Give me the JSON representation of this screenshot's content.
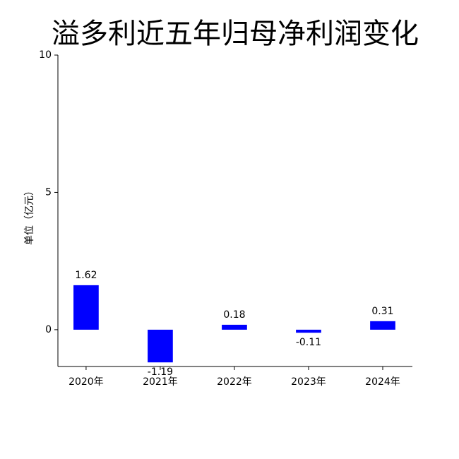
{
  "chart_data": {
    "type": "bar",
    "title": "溢多利近五年归母净利润变化",
    "ylabel": "单位（亿元）",
    "categories": [
      "2020年",
      "2021年",
      "2022年",
      "2023年",
      "2024年"
    ],
    "values": [
      1.62,
      -1.19,
      0.18,
      -0.11,
      0.31
    ],
    "color": "#0000ff",
    "ylim": [
      -1.34,
      10
    ],
    "yticks": [
      0,
      5,
      10
    ],
    "grid": false
  }
}
